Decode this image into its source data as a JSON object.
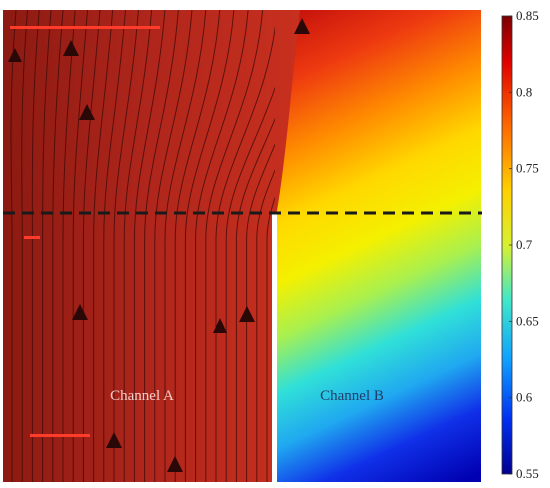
{
  "regions": {
    "channel_a": {
      "label": "Channel A",
      "color": "#f4cfc8"
    },
    "channel_b": {
      "label": "Channel B",
      "color": "#1f3f6a"
    }
  },
  "field_colors": {
    "channel_a_base": "#b0261c",
    "streamline": "#3d0a08",
    "marker": "#2a0808",
    "divider": "#1a1a1a",
    "wall": "#ffffff"
  },
  "colorbar": {
    "min": 0.55,
    "max": 0.85,
    "ticks": [
      "0.85",
      "0.8",
      "0.75",
      "0.7",
      "0.65",
      "0.6",
      "0.55"
    ],
    "tick_values": [
      0.85,
      0.8,
      0.75,
      0.7,
      0.65,
      0.6,
      0.55
    ],
    "colormap": "jet"
  }
}
